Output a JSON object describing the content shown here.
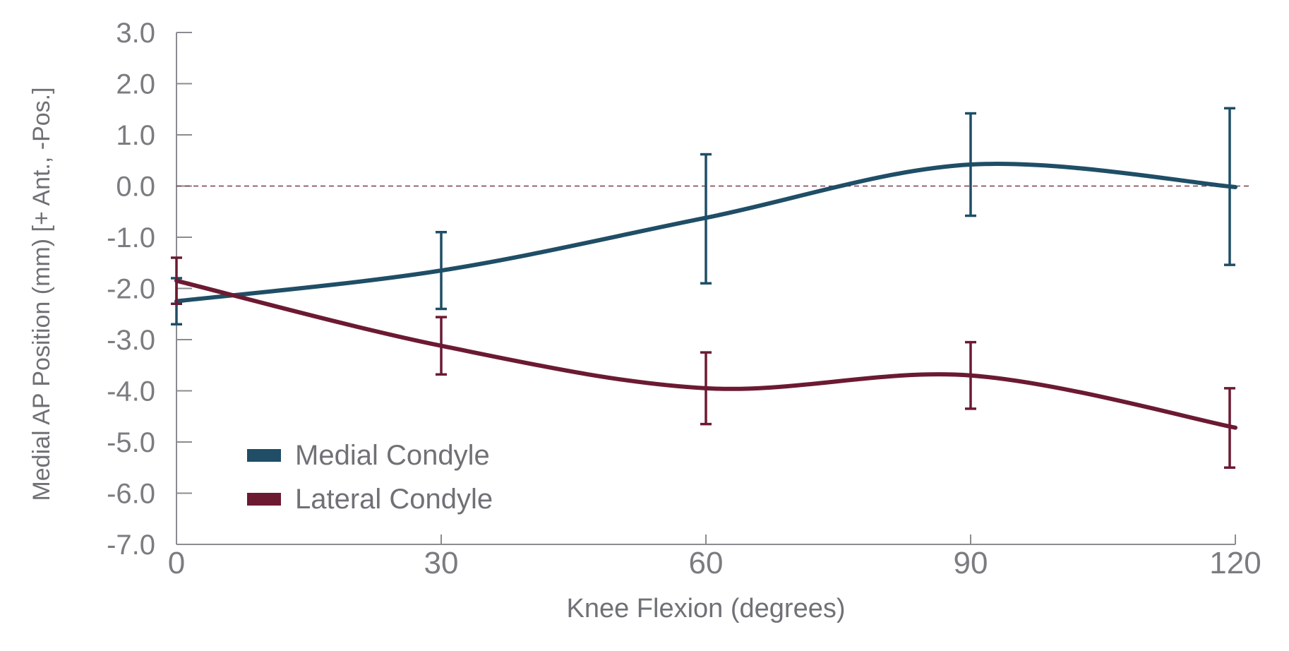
{
  "chart_data": {
    "type": "line",
    "xlabel": "Knee Flexion (degrees)",
    "ylabel": "Medial AP Position (mm) [+ Ant., -Pos.]",
    "xlim": [
      0,
      120
    ],
    "ylim": [
      -7.0,
      3.0
    ],
    "x_ticks": [
      "0",
      "30",
      "60",
      "90",
      "120"
    ],
    "y_ticks": [
      "3.0",
      "2.0",
      "1.0",
      "0.0",
      "-1.0",
      "-2.0",
      "-3.0",
      "-4.0",
      "-5.0",
      "-6.0",
      "-7.0"
    ],
    "reference_line": 0.0,
    "grid": false,
    "legend_position": "bottom-left",
    "series": [
      {
        "name": "Medial Condyle",
        "color": "#1f4e66",
        "x": [
          0,
          30,
          60,
          90,
          120
        ],
        "y": [
          -2.25,
          -1.65,
          -0.62,
          0.42,
          -0.02
        ],
        "err_low": [
          -2.7,
          -2.4,
          -1.9,
          -0.58,
          -1.54
        ],
        "err_high": [
          -1.8,
          -0.9,
          0.62,
          1.42,
          1.52
        ]
      },
      {
        "name": "Lateral Condyle",
        "color": "#6b1a32",
        "x": [
          0,
          30,
          60,
          90,
          120
        ],
        "y": [
          -1.85,
          -3.12,
          -3.95,
          -3.7,
          -4.72
        ],
        "err_low": [
          -2.3,
          -3.68,
          -4.65,
          -4.35,
          -5.5
        ],
        "err_high": [
          -1.4,
          -2.56,
          -3.25,
          -3.05,
          -3.95
        ]
      }
    ]
  }
}
